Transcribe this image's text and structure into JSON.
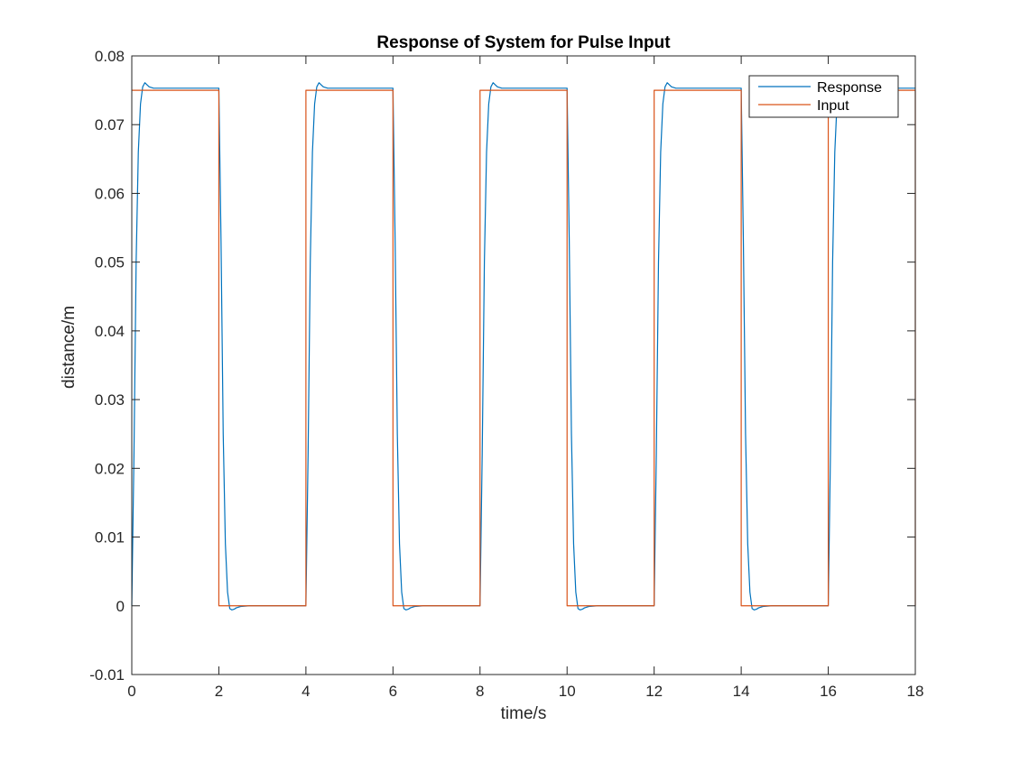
{
  "chart_data": {
    "type": "line",
    "title": "Response of System for Pulse Input",
    "xlabel": "time/s",
    "ylabel": "distance/m",
    "xlim": [
      0,
      18
    ],
    "ylim": [
      -0.01,
      0.08
    ],
    "xticks": [
      0,
      2,
      4,
      6,
      8,
      10,
      12,
      14,
      16,
      18
    ],
    "xtick_labels": [
      "0",
      "2",
      "4",
      "6",
      "8",
      "10",
      "12",
      "14",
      "16",
      "18"
    ],
    "yticks": [
      -0.01,
      0,
      0.01,
      0.02,
      0.03,
      0.04,
      0.05,
      0.06,
      0.07,
      0.08
    ],
    "ytick_labels": [
      "-0.01",
      "0",
      "0.01",
      "0.02",
      "0.03",
      "0.04",
      "0.05",
      "0.06",
      "0.07",
      "0.08"
    ],
    "grid": false,
    "legend_position": "top-right",
    "series": [
      {
        "name": "Response",
        "color": "#0072BD",
        "x": [
          0,
          0.05,
          0.1,
          0.15,
          0.2,
          0.25,
          0.3,
          0.35,
          0.4,
          0.5,
          0.7,
          1.0,
          2.0,
          2.05,
          2.1,
          2.15,
          2.2,
          2.25,
          2.3,
          2.35,
          2.4,
          2.5,
          2.7,
          3.0,
          4.0,
          4.05,
          4.1,
          4.15,
          4.2,
          4.25,
          4.3,
          4.35,
          4.4,
          4.5,
          4.7,
          5.0,
          6.0,
          6.05,
          6.1,
          6.15,
          6.2,
          6.25,
          6.3,
          6.35,
          6.4,
          6.5,
          6.7,
          7.0,
          8.0,
          8.05,
          8.1,
          8.15,
          8.2,
          8.25,
          8.3,
          8.35,
          8.4,
          8.5,
          8.7,
          9.0,
          10.0,
          10.05,
          10.1,
          10.15,
          10.2,
          10.25,
          10.3,
          10.35,
          10.4,
          10.5,
          10.7,
          11.0,
          12.0,
          12.05,
          12.1,
          12.15,
          12.2,
          12.25,
          12.3,
          12.35,
          12.4,
          12.5,
          12.7,
          13.0,
          14.0,
          14.05,
          14.1,
          14.15,
          14.2,
          14.25,
          14.3,
          14.35,
          14.4,
          14.5,
          14.7,
          15.0,
          16.0,
          16.05,
          16.1,
          16.15,
          16.2,
          16.25,
          16.3,
          16.35,
          16.4,
          16.5,
          16.7,
          17.0,
          18.0
        ],
        "y": [
          0,
          0.022,
          0.05,
          0.066,
          0.073,
          0.0755,
          0.0761,
          0.0758,
          0.0755,
          0.0753,
          0.0753,
          0.0753,
          0.0753,
          0.053,
          0.025,
          0.009,
          0.002,
          -0.0004,
          -0.0006,
          -0.0005,
          -0.0003,
          -0.0001,
          0,
          0,
          0,
          0.022,
          0.05,
          0.066,
          0.073,
          0.0755,
          0.0761,
          0.0758,
          0.0755,
          0.0753,
          0.0753,
          0.0753,
          0.0753,
          0.053,
          0.025,
          0.009,
          0.002,
          -0.0004,
          -0.0006,
          -0.0005,
          -0.0003,
          -0.0001,
          0,
          0,
          0,
          0.022,
          0.05,
          0.066,
          0.073,
          0.0755,
          0.0761,
          0.0758,
          0.0755,
          0.0753,
          0.0753,
          0.0753,
          0.0753,
          0.053,
          0.025,
          0.009,
          0.002,
          -0.0004,
          -0.0006,
          -0.0005,
          -0.0003,
          -0.0001,
          0,
          0,
          0,
          0.022,
          0.05,
          0.066,
          0.073,
          0.0755,
          0.0761,
          0.0758,
          0.0755,
          0.0753,
          0.0753,
          0.0753,
          0.0753,
          0.053,
          0.025,
          0.009,
          0.002,
          -0.0004,
          -0.0006,
          -0.0005,
          -0.0003,
          -0.0001,
          0,
          0,
          0,
          0.022,
          0.05,
          0.066,
          0.073,
          0.0755,
          0.0761,
          0.0758,
          0.0755,
          0.0753,
          0.0753,
          0.0753,
          0.0753
        ]
      },
      {
        "name": "Input",
        "color": "#D95319",
        "x": [
          0,
          2,
          2,
          4,
          4,
          6,
          6,
          8,
          8,
          10,
          10,
          12,
          12,
          14,
          14,
          16,
          16,
          18,
          18
        ],
        "y": [
          0.075,
          0.075,
          0,
          0,
          0.075,
          0.075,
          0,
          0,
          0.075,
          0.075,
          0,
          0,
          0.075,
          0.075,
          0,
          0,
          0.075,
          0.075,
          0
        ]
      }
    ]
  }
}
